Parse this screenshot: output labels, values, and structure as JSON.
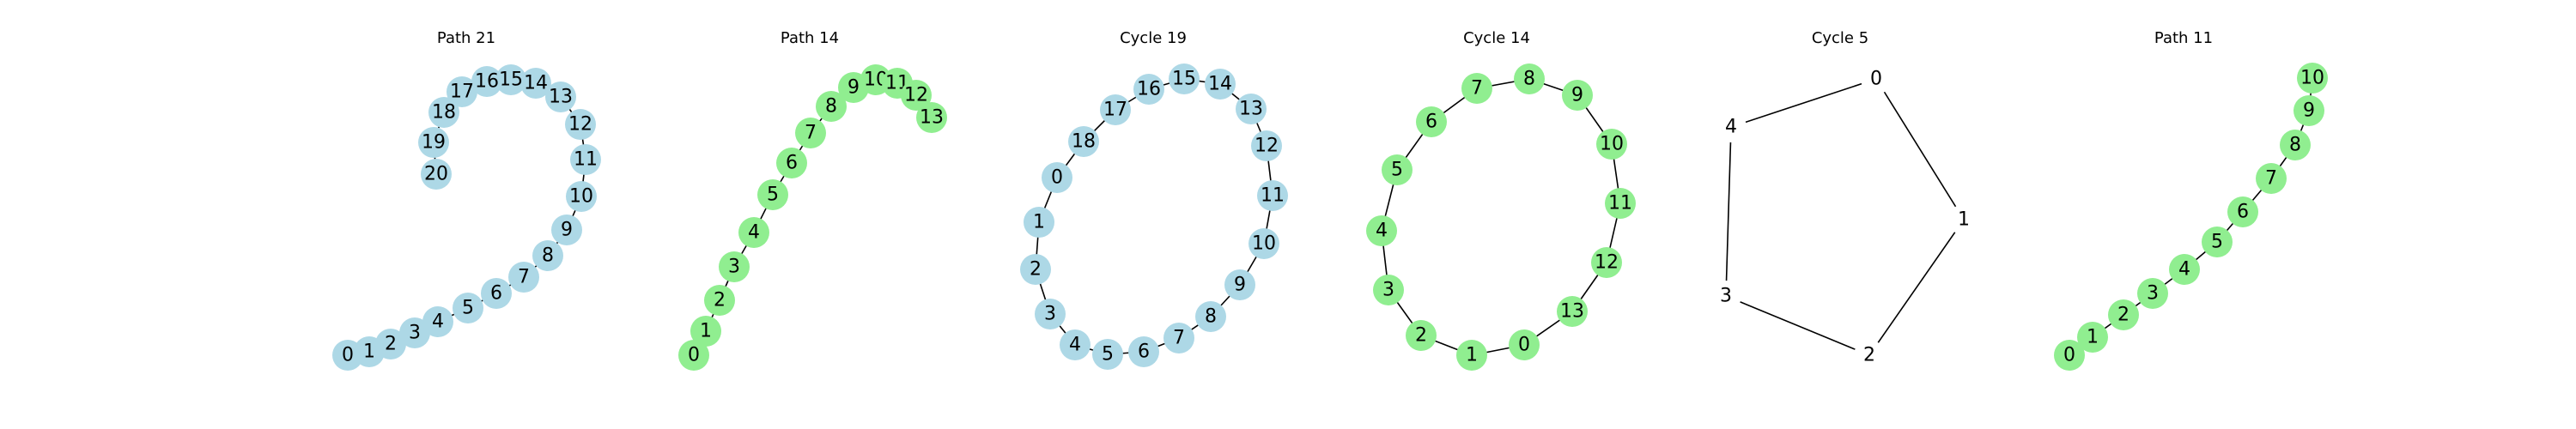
{
  "colors": {
    "blue_node": "#add8e6",
    "green_node": "#90ee90",
    "edge": "#000000"
  },
  "panels": [
    {
      "title": "Path 21",
      "kind": "path",
      "n": 21,
      "node_color": "blue_node"
    },
    {
      "title": "Path 14",
      "kind": "path",
      "n": 14,
      "node_color": "green_node"
    },
    {
      "title": "Cycle 19",
      "kind": "cycle",
      "n": 19,
      "node_color": "blue_node"
    },
    {
      "title": "Cycle 14",
      "kind": "cycle",
      "n": 14,
      "node_color": "green_node"
    },
    {
      "title": "Cycle 5",
      "kind": "cycle",
      "n": 5,
      "node_color": "white"
    },
    {
      "title": "Path 11",
      "kind": "path",
      "n": 11,
      "node_color": "green_node"
    }
  ]
}
